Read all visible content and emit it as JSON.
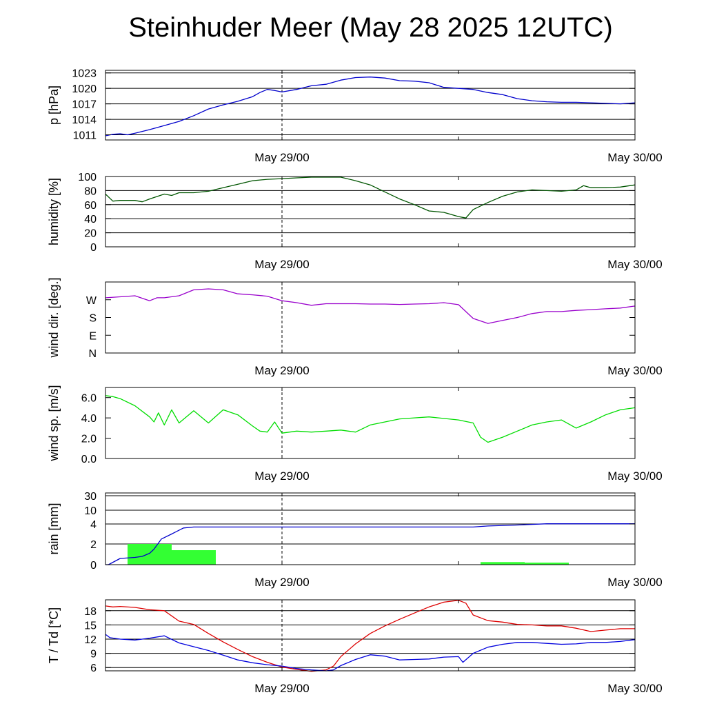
{
  "title": "Steinhuder Meer (May 28 2025 12UTC)",
  "x_axis": {
    "tick_labels": [
      "May 29/00",
      "May 30/00"
    ],
    "range_hours": [
      0,
      36
    ],
    "label_positions_hours": [
      12,
      36
    ]
  },
  "chart_data": [
    {
      "type": "line",
      "ylabel": "p [hPa]",
      "ylim": [
        1010,
        1023.5
      ],
      "yticks": [
        1011,
        1014,
        1017,
        1020,
        1023
      ],
      "ytick_labels": [
        "1011",
        "1014",
        "1017",
        "1020",
        "1023"
      ],
      "grid": true,
      "series": [
        {
          "color": "#0000cc",
          "x": [
            0,
            0.5,
            1,
            1.5,
            2,
            3,
            4,
            5,
            6,
            7,
            8,
            9,
            10,
            10.5,
            11,
            11.5,
            12,
            13,
            14,
            15,
            16,
            17,
            18,
            19,
            20,
            21,
            22,
            23,
            24,
            25,
            26,
            27,
            28,
            29,
            30,
            31,
            32,
            33,
            34,
            35,
            36
          ],
          "values": [
            1010.8,
            1011.1,
            1011.2,
            1011.0,
            1011.3,
            1012.0,
            1012.8,
            1013.6,
            1014.7,
            1016.0,
            1016.8,
            1017.5,
            1018.4,
            1019.2,
            1019.8,
            1019.6,
            1019.3,
            1019.8,
            1020.5,
            1020.8,
            1021.6,
            1022.1,
            1022.2,
            1022.0,
            1021.5,
            1021.4,
            1021.1,
            1020.2,
            1020.0,
            1019.8,
            1019.2,
            1018.8,
            1018.0,
            1017.6,
            1017.4,
            1017.3,
            1017.3,
            1017.2,
            1017.1,
            1017.0,
            1017.2
          ]
        }
      ]
    },
    {
      "type": "line",
      "ylabel": "humidity [%]",
      "ylim": [
        0,
        100
      ],
      "yticks": [
        0,
        20,
        40,
        60,
        80,
        100
      ],
      "ytick_labels": [
        "0",
        "20",
        "40",
        "60",
        "80",
        "100"
      ],
      "grid": true,
      "series": [
        {
          "color": "#005500",
          "x": [
            0,
            0.5,
            1,
            2,
            2.5,
            3,
            4,
            4.5,
            5,
            6,
            7,
            8,
            9,
            10,
            11,
            12,
            13,
            14,
            15,
            16,
            17,
            18,
            19,
            20,
            21,
            22,
            23,
            24,
            24.5,
            25,
            26,
            27,
            28,
            29,
            30,
            31,
            32,
            32.5,
            33,
            34,
            35,
            36
          ],
          "values": [
            75,
            65,
            66,
            66,
            64,
            68,
            75,
            73,
            77,
            77,
            79,
            84,
            89,
            94,
            96,
            97,
            98,
            99,
            99,
            99,
            94,
            88,
            78,
            68,
            60,
            51,
            49,
            43,
            41,
            53,
            63,
            72,
            78,
            81,
            80,
            79,
            81,
            87,
            84,
            84,
            85,
            88
          ]
        }
      ]
    },
    {
      "type": "line",
      "ylabel": "wind dir. [deg.]",
      "ylim": [
        0,
        360
      ],
      "yticks": [
        0,
        90,
        180,
        270
      ],
      "ytick_labels": [
        "N",
        "E",
        "S",
        "W"
      ],
      "grid": false,
      "series": [
        {
          "color": "#9900cc",
          "x": [
            0,
            1,
            2,
            3,
            3.5,
            4,
            5,
            6,
            7,
            8,
            9,
            10,
            11,
            12,
            13,
            14,
            15,
            16,
            17,
            18,
            19,
            20,
            21,
            22,
            23,
            24,
            25,
            26,
            27,
            28,
            29,
            30,
            31,
            32,
            33,
            34,
            35,
            36
          ],
          "values": [
            280,
            285,
            290,
            265,
            280,
            280,
            290,
            320,
            325,
            320,
            300,
            295,
            288,
            265,
            255,
            242,
            250,
            250,
            250,
            248,
            248,
            246,
            248,
            250,
            255,
            245,
            175,
            150,
            165,
            180,
            200,
            210,
            210,
            216,
            220,
            224,
            228,
            238
          ]
        }
      ]
    },
    {
      "type": "line",
      "ylabel": "wind sp. [m/s]",
      "ylim": [
        0,
        7
      ],
      "yticks": [
        0,
        2,
        4,
        6
      ],
      "ytick_labels": [
        "0.0",
        "2.0",
        "4.0",
        "6.0"
      ],
      "grid": false,
      "series": [
        {
          "color": "#00dd00",
          "x": [
            0,
            0.5,
            1,
            2,
            3,
            3.3,
            3.6,
            4,
            4.5,
            5,
            6,
            7,
            8,
            9,
            10,
            10.5,
            11,
            11.5,
            12,
            13,
            14,
            15,
            16,
            17,
            18,
            19,
            20,
            21,
            22,
            24,
            25,
            25.5,
            26,
            27,
            28,
            29,
            30,
            31,
            32,
            33,
            34,
            35,
            36
          ],
          "values": [
            6.2,
            6.1,
            5.9,
            5.2,
            4.1,
            3.6,
            4.5,
            3.3,
            4.8,
            3.5,
            4.7,
            3.5,
            4.8,
            4.3,
            3.2,
            2.7,
            2.6,
            3.6,
            2.5,
            2.7,
            2.6,
            2.7,
            2.8,
            2.6,
            3.3,
            3.6,
            3.9,
            4.0,
            4.1,
            3.8,
            3.5,
            2.1,
            1.6,
            2.1,
            2.7,
            3.3,
            3.6,
            3.8,
            3.0,
            3.6,
            4.3,
            4.8,
            5.0
          ]
        }
      ]
    },
    {
      "type": "bar",
      "ylabel": "rain [mm]",
      "ylim": [
        0,
        30
      ],
      "yticks": [
        0,
        2,
        4,
        10,
        30
      ],
      "ytick_labels": [
        "0",
        "2",
        "4",
        "10",
        "30"
      ],
      "grid": true,
      "bars": [
        {
          "x0": 1.5,
          "x1": 4.5,
          "value": 2.0
        },
        {
          "x0": 4.5,
          "x1": 7.5,
          "value": 1.4
        },
        {
          "x0": 25.5,
          "x1": 28.5,
          "value": 0.25
        },
        {
          "x0": 28.5,
          "x1": 31.5,
          "value": 0.2
        }
      ],
      "series": [
        {
          "color": "#0000cc",
          "x": [
            0,
            0.2,
            1,
            2,
            2.5,
            3,
            3.3,
            3.8,
            4.5,
            5.3,
            6,
            12,
            18,
            24,
            25,
            26,
            28,
            30,
            32,
            36
          ],
          "values": [
            0,
            0,
            0.6,
            0.7,
            0.8,
            1.1,
            1.5,
            2.5,
            3.0,
            3.6,
            3.7,
            3.7,
            3.7,
            3.7,
            3.7,
            3.8,
            3.9,
            4.1,
            4.1,
            4.1
          ]
        }
      ]
    },
    {
      "type": "line",
      "ylabel": "T / Td [*C]",
      "ylim": [
        5.3,
        20.3
      ],
      "yticks": [
        6,
        9,
        12,
        15,
        18
      ],
      "ytick_labels": [
        "6",
        "9",
        "12",
        "15",
        "18"
      ],
      "grid": true,
      "series": [
        {
          "name": "T",
          "color": "#dd0000",
          "x": [
            0,
            0.5,
            1,
            2,
            3,
            4,
            5,
            6,
            7,
            8,
            9,
            10,
            11,
            12,
            13,
            14,
            15,
            15.5,
            16,
            17,
            18,
            19,
            20,
            21,
            22,
            23,
            24,
            24.5,
            25,
            26,
            27,
            28,
            29,
            30,
            31,
            32,
            33,
            34,
            35,
            36
          ],
          "values": [
            19.0,
            18.8,
            18.9,
            18.7,
            18.2,
            18.0,
            15.8,
            15.1,
            13.2,
            11.4,
            9.8,
            8.3,
            7.1,
            6.1,
            5.6,
            5.2,
            5.5,
            6.3,
            8.3,
            11.0,
            13.2,
            14.8,
            16.2,
            17.5,
            18.8,
            19.8,
            20.2,
            19.6,
            17.1,
            15.9,
            15.6,
            15.1,
            15.0,
            14.8,
            14.8,
            14.3,
            13.6,
            13.9,
            14.2,
            14.2
          ]
        },
        {
          "name": "Td",
          "color": "#0000dd",
          "x": [
            0,
            0.3,
            1,
            2,
            3,
            4,
            5,
            6,
            7,
            8,
            9,
            10,
            11,
            12,
            13,
            14,
            15,
            15.5,
            16,
            17,
            18,
            19,
            20,
            21,
            22,
            23,
            24,
            24.3,
            25,
            26,
            27,
            28,
            29,
            30,
            31,
            32,
            33,
            34,
            35,
            36
          ],
          "values": [
            13.0,
            12.3,
            12.0,
            11.8,
            12.2,
            12.7,
            11.2,
            10.4,
            9.6,
            8.6,
            7.6,
            7.0,
            6.6,
            6.3,
            5.8,
            5.5,
            5.3,
            5.5,
            6.4,
            7.7,
            8.7,
            8.4,
            7.6,
            7.7,
            7.8,
            8.2,
            8.3,
            7.1,
            9.0,
            10.3,
            10.9,
            11.3,
            11.3,
            11.1,
            10.9,
            11.0,
            11.3,
            11.3,
            11.5,
            11.9
          ]
        }
      ]
    }
  ]
}
